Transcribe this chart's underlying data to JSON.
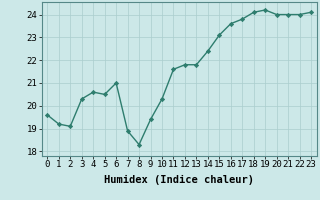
{
  "x": [
    0,
    1,
    2,
    3,
    4,
    5,
    6,
    7,
    8,
    9,
    10,
    11,
    12,
    13,
    14,
    15,
    16,
    17,
    18,
    19,
    20,
    21,
    22,
    23
  ],
  "y": [
    19.6,
    19.2,
    19.1,
    20.3,
    20.6,
    20.5,
    21.0,
    18.9,
    18.3,
    19.4,
    20.3,
    21.6,
    21.8,
    21.8,
    22.4,
    23.1,
    23.6,
    23.8,
    24.1,
    24.2,
    24.0,
    24.0,
    24.0,
    24.1
  ],
  "line_color": "#2e7d6e",
  "marker": "D",
  "marker_size": 2.2,
  "bg_color": "#cce8e8",
  "grid_color": "#aacece",
  "xlabel": "Humidex (Indice chaleur)",
  "xlim": [
    -0.5,
    23.5
  ],
  "ylim": [
    17.8,
    24.55
  ],
  "yticks": [
    18,
    19,
    20,
    21,
    22,
    23,
    24
  ],
  "xticks": [
    0,
    1,
    2,
    3,
    4,
    5,
    6,
    7,
    8,
    9,
    10,
    11,
    12,
    13,
    14,
    15,
    16,
    17,
    18,
    19,
    20,
    21,
    22,
    23
  ],
  "xlabel_fontsize": 7.5,
  "tick_fontsize": 6.5,
  "linewidth": 1.0
}
